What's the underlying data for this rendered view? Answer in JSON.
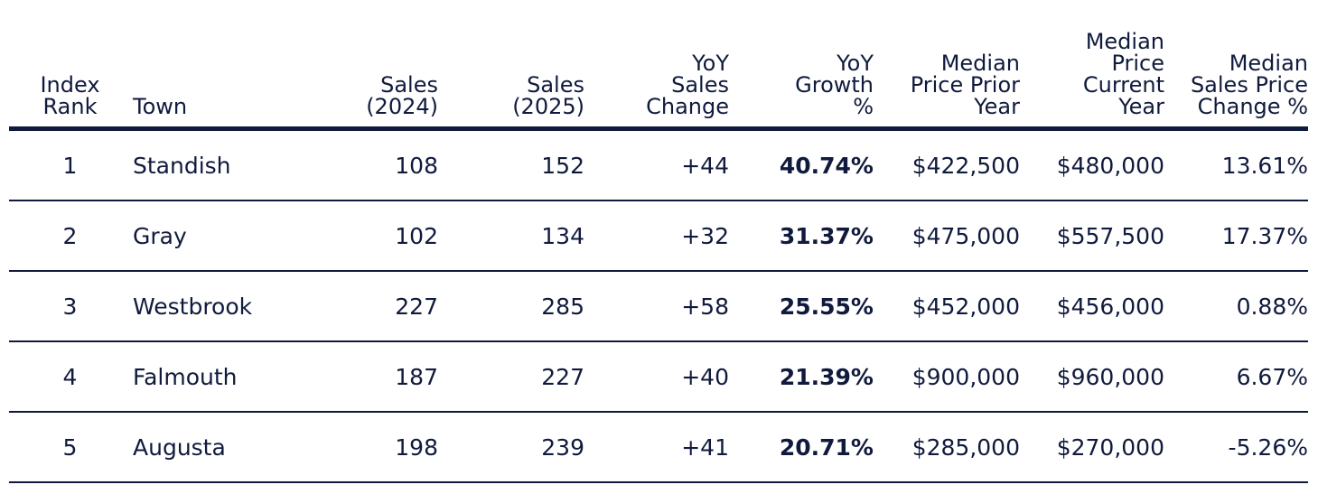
{
  "table": {
    "headers": {
      "rank": "Index\nRank",
      "town": "Town",
      "sales_2024": "Sales\n(2024)",
      "sales_2025": "Sales\n(2025)",
      "yoy_sales_change": "YoY\nSales\nChange",
      "yoy_growth": "YoY\nGrowth\n%",
      "median_prior": "Median\nPrice Prior\nYear",
      "median_current": "Median\nPrice\nCurrent\nYear",
      "median_change": "Median\nSales Price\nChange %"
    },
    "rows": [
      {
        "rank": "1",
        "town": "Standish",
        "sales_2024": "108",
        "sales_2025": "152",
        "yoy_sales_change": "+44",
        "yoy_growth": "40.74%",
        "median_prior": "$422,500",
        "median_current": "$480,000",
        "median_change": "13.61%"
      },
      {
        "rank": "2",
        "town": "Gray",
        "sales_2024": "102",
        "sales_2025": "134",
        "yoy_sales_change": "+32",
        "yoy_growth": "31.37%",
        "median_prior": "$475,000",
        "median_current": "$557,500",
        "median_change": "17.37%"
      },
      {
        "rank": "3",
        "town": "Westbrook",
        "sales_2024": "227",
        "sales_2025": "285",
        "yoy_sales_change": "+58",
        "yoy_growth": "25.55%",
        "median_prior": "$452,000",
        "median_current": "$456,000",
        "median_change": "0.88%"
      },
      {
        "rank": "4",
        "town": "Falmouth",
        "sales_2024": "187",
        "sales_2025": "227",
        "yoy_sales_change": "+40",
        "yoy_growth": "21.39%",
        "median_prior": "$900,000",
        "median_current": "$960,000",
        "median_change": "6.67%"
      },
      {
        "rank": "5",
        "town": "Augusta",
        "sales_2024": "198",
        "sales_2025": "239",
        "yoy_sales_change": "+41",
        "yoy_growth": "20.71%",
        "median_prior": "$285,000",
        "median_current": "$270,000",
        "median_change": "-5.26%"
      }
    ]
  },
  "colors": {
    "text": "#101a3d",
    "rule": "#101a3d",
    "background": "#ffffff"
  }
}
